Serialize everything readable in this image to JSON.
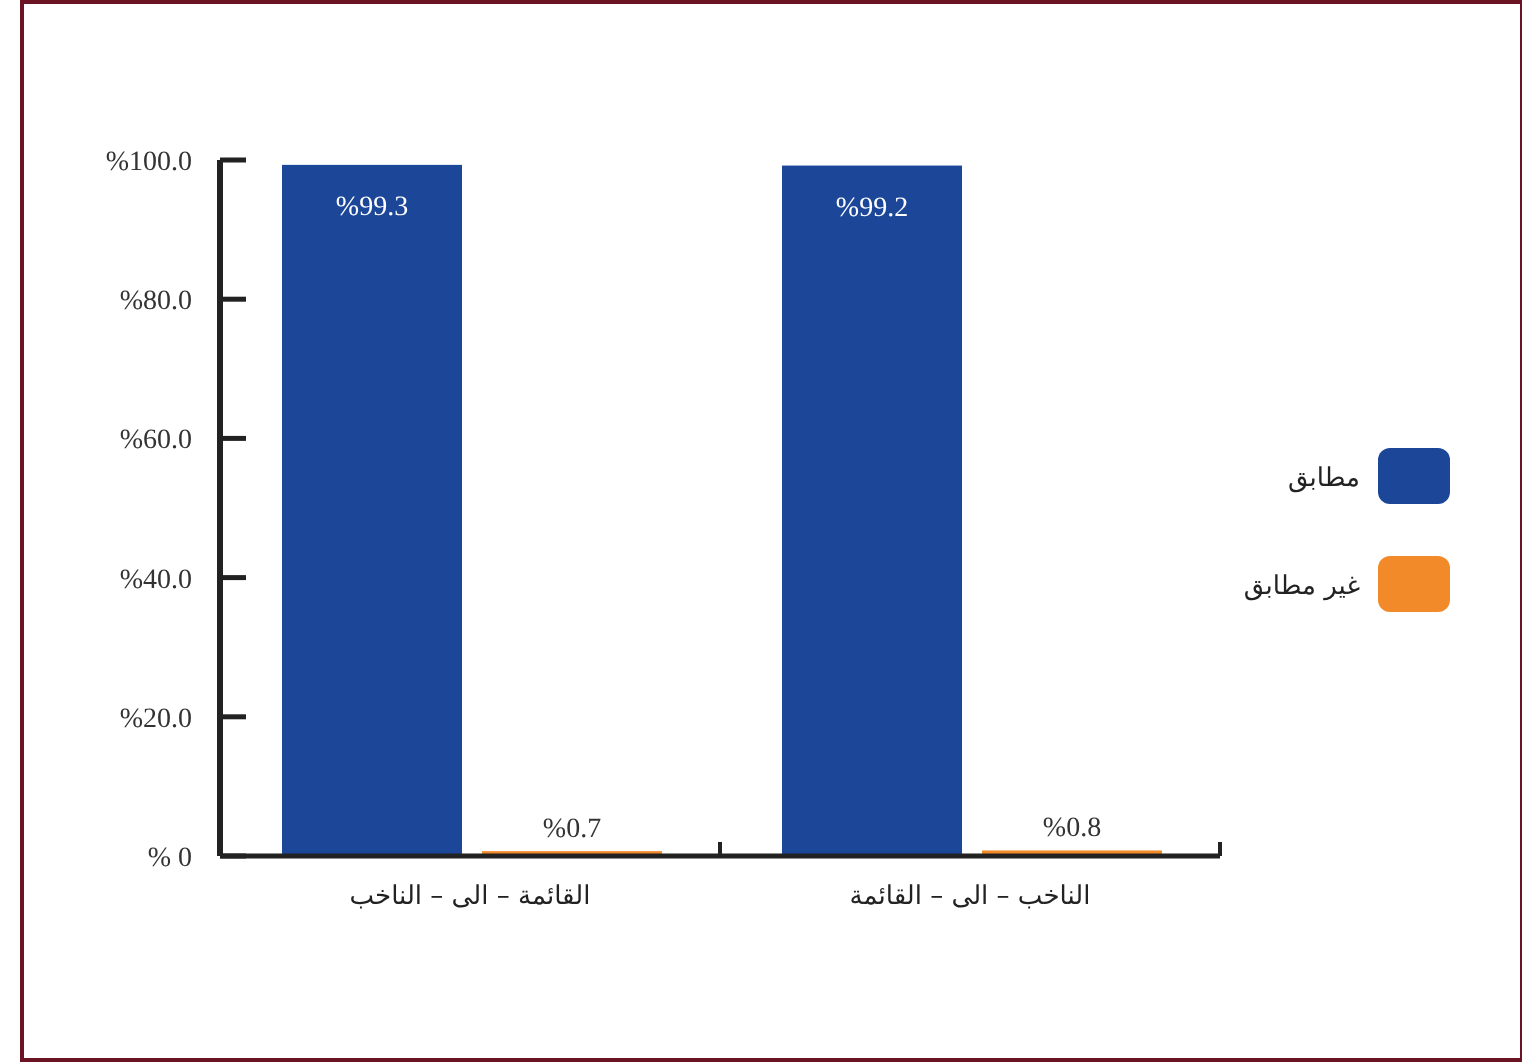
{
  "chart_data": {
    "type": "bar",
    "categories": [
      "القائمة – الى – الناخب",
      "الناخب – الى – القائمة"
    ],
    "series": [
      {
        "name": "مطابق",
        "color": "#1c4698",
        "values": [
          99.3,
          99.2
        ],
        "value_labels": [
          "%99.3",
          "%99.2"
        ]
      },
      {
        "name": "غير مطابق",
        "color": "#f28a2a",
        "values": [
          0.7,
          0.8
        ],
        "value_labels": [
          "%0.7",
          "%0.8"
        ]
      }
    ],
    "ylim": [
      0,
      100
    ],
    "yticks": [
      {
        "value": 0,
        "label": "% 0"
      },
      {
        "value": 20,
        "label": "%20.0"
      },
      {
        "value": 40,
        "label": "%40.0"
      },
      {
        "value": 60,
        "label": "%60.0"
      },
      {
        "value": 80,
        "label": "%80.0"
      },
      {
        "value": 100,
        "label": "%100.0"
      }
    ],
    "grid": false,
    "legend": "right"
  }
}
